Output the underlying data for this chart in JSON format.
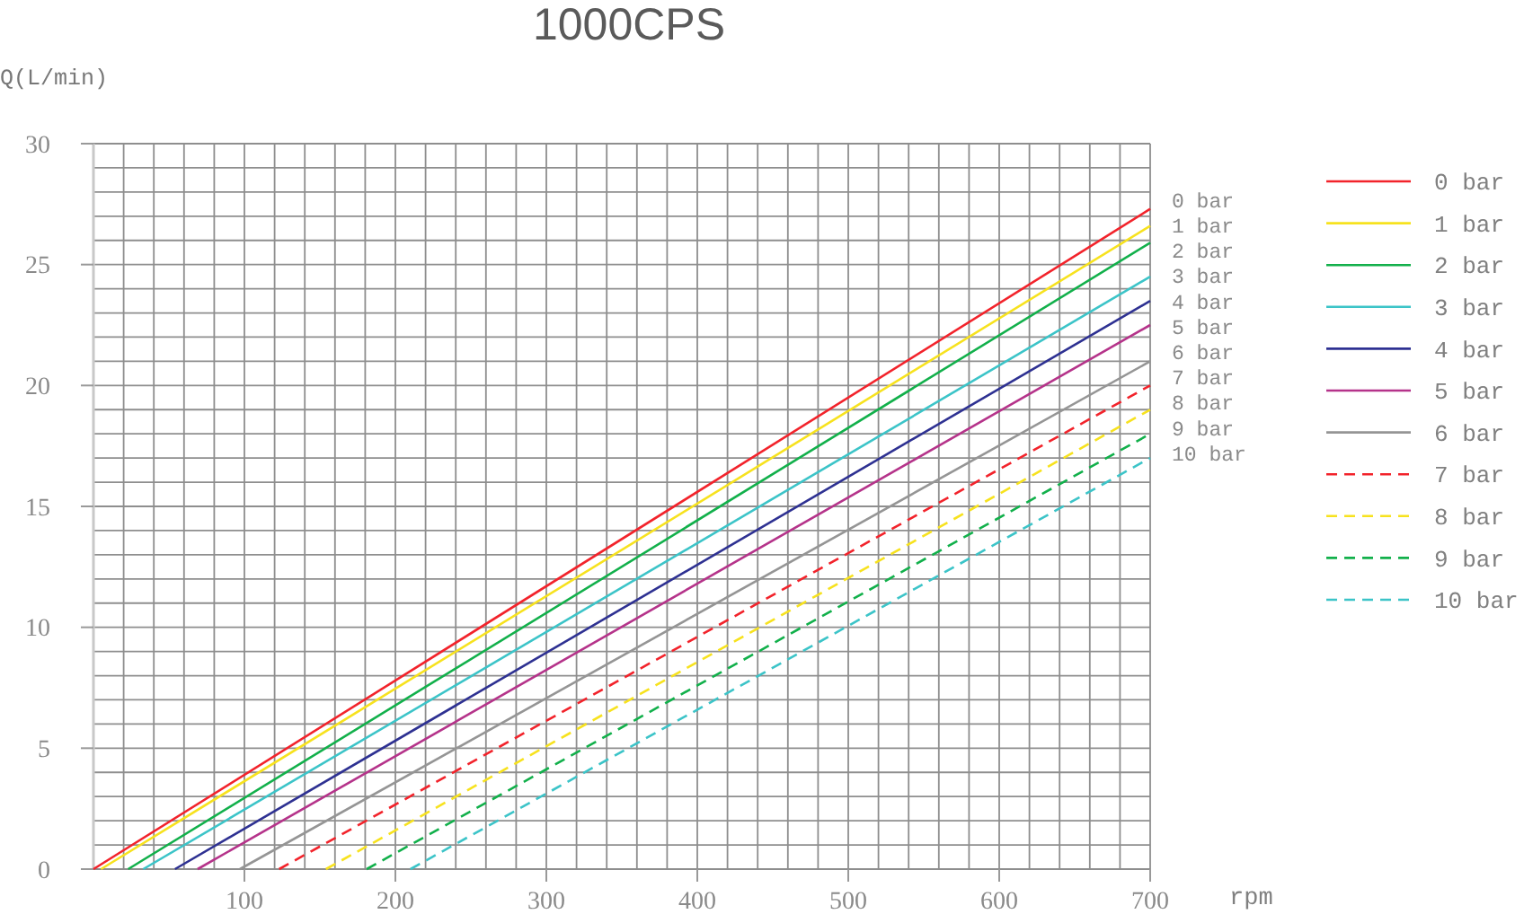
{
  "chart_data": {
    "type": "line",
    "title": "1000CPS",
    "ylabel": "Q(L/min)",
    "xlabel": "rpm",
    "xlim": [
      0,
      700
    ],
    "ylim": [
      0,
      30
    ],
    "xticks": [
      {
        "value": 0,
        "label": null
      },
      {
        "value": 20,
        "label": null
      },
      {
        "value": 40,
        "label": null
      },
      {
        "value": 60,
        "label": null
      },
      {
        "value": 80,
        "label": null
      },
      100,
      {
        "value": 120,
        "label": null
      },
      {
        "value": 140,
        "label": null
      },
      {
        "value": 160,
        "label": null
      },
      {
        "value": 180,
        "label": null
      },
      200,
      {
        "value": 220,
        "label": null
      },
      {
        "value": 240,
        "label": null
      },
      {
        "value": 260,
        "label": null
      },
      {
        "value": 280,
        "label": null
      },
      300,
      {
        "value": 320,
        "label": null
      },
      {
        "value": 340,
        "label": null
      },
      {
        "value": 360,
        "label": null
      },
      {
        "value": 380,
        "label": null
      },
      400,
      {
        "value": 420,
        "label": null
      },
      {
        "value": 440,
        "label": null
      },
      {
        "value": 460,
        "label": null
      },
      {
        "value": 480,
        "label": null
      },
      500,
      {
        "value": 520,
        "label": null
      },
      {
        "value": 540,
        "label": null
      },
      {
        "value": 560,
        "label": null
      },
      {
        "value": 580,
        "label": null
      },
      600,
      {
        "value": 620,
        "label": null
      },
      {
        "value": 640,
        "label": null
      },
      {
        "value": 660,
        "label": null
      },
      {
        "value": 680,
        "label": null
      },
      700
    ],
    "yticks": [
      0,
      {
        "value": 1,
        "label": null
      },
      {
        "value": 2,
        "label": null
      },
      {
        "value": 3,
        "label": null
      },
      {
        "value": 4,
        "label": null
      },
      5,
      {
        "value": 6,
        "label": null
      },
      {
        "value": 7,
        "label": null
      },
      {
        "value": 8,
        "label": null
      },
      {
        "value": 9,
        "label": null
      },
      10,
      {
        "value": 11,
        "label": null
      },
      {
        "value": 12,
        "label": null
      },
      {
        "value": 13,
        "label": null
      },
      {
        "value": 14,
        "label": null
      },
      15,
      {
        "value": 16,
        "label": null
      },
      {
        "value": 17,
        "label": null
      },
      {
        "value": 18,
        "label": null
      },
      {
        "value": 19,
        "label": null
      },
      20,
      {
        "value": 21,
        "label": null
      },
      {
        "value": 22,
        "label": null
      },
      {
        "value": 23,
        "label": null
      },
      {
        "value": 24,
        "label": null
      },
      25,
      {
        "value": 26,
        "label": null
      },
      {
        "value": 27,
        "label": null
      },
      {
        "value": 28,
        "label": null
      },
      {
        "value": 29,
        "label": null
      },
      30
    ],
    "grid": true,
    "legend": "right",
    "series": [
      {
        "name": "0 bar",
        "color": "#f2232b",
        "line_style": "solid",
        "x": [
          0,
          700
        ],
        "values": [
          0,
          27.3
        ]
      },
      {
        "name": "1 bar",
        "color": "#f7e21e",
        "line_style": "solid",
        "x": [
          5,
          700
        ],
        "values": [
          0,
          26.6
        ]
      },
      {
        "name": "2 bar",
        "color": "#12b04b",
        "line_style": "solid",
        "x": [
          23,
          700
        ],
        "values": [
          0,
          25.9
        ]
      },
      {
        "name": "3 bar",
        "color": "#3cc4c8",
        "line_style": "solid",
        "x": [
          33,
          700
        ],
        "values": [
          0,
          24.5
        ]
      },
      {
        "name": "4 bar",
        "color": "#2e3192",
        "line_style": "solid",
        "x": [
          54,
          700
        ],
        "values": [
          0,
          23.5
        ]
      },
      {
        "name": "5 bar",
        "color": "#b5338a",
        "line_style": "solid",
        "x": [
          69,
          700
        ],
        "values": [
          0,
          22.5
        ]
      },
      {
        "name": "6 bar",
        "color": "#959595",
        "line_style": "solid",
        "x": [
          97,
          700
        ],
        "values": [
          0,
          21
        ]
      },
      {
        "name": "7 bar",
        "color": "#f2232b",
        "line_style": "dashed",
        "x": [
          123,
          700
        ],
        "values": [
          0,
          20
        ]
      },
      {
        "name": "8 bar",
        "color": "#f7e21e",
        "line_style": "dashed",
        "x": [
          154,
          700
        ],
        "values": [
          0,
          19
        ]
      },
      {
        "name": "9 bar",
        "color": "#12b04b",
        "line_style": "dashed",
        "x": [
          181,
          700
        ],
        "values": [
          0,
          18
        ]
      },
      {
        "name": "10 bar",
        "color": "#3cc4c8",
        "line_style": "dashed",
        "x": [
          210,
          700
        ],
        "values": [
          0,
          17
        ]
      }
    ]
  }
}
